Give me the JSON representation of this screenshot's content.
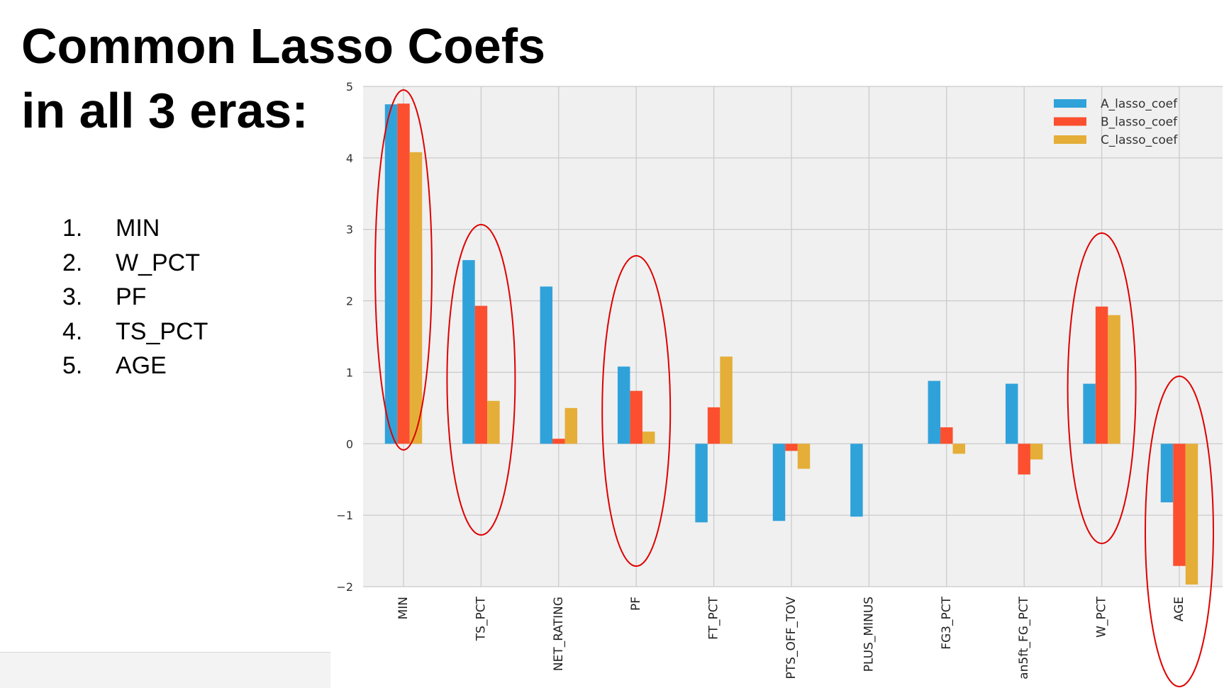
{
  "slide": {
    "title_line1": "Common Lasso Coefs",
    "title_line2": "in all 3 eras:",
    "list": [
      {
        "num": "1.",
        "label": "MIN"
      },
      {
        "num": "2.",
        "label": "W_PCT"
      },
      {
        "num": "3.",
        "label": "PF"
      },
      {
        "num": "4.",
        "label": "TS_PCT"
      },
      {
        "num": "5.",
        "label": "AGE"
      }
    ]
  },
  "chart_data": {
    "type": "bar",
    "categories": [
      "MIN",
      "TS_PCT",
      "NET_RATING",
      "PF",
      "FT_PCT",
      "PTS_OFF_TOV",
      "PLUS_MINUS",
      "FG3_PCT",
      "an5ft_FG_PCT",
      "W_PCT",
      "AGE"
    ],
    "series": [
      {
        "name": "A_lasso_coef",
        "color": "#30a2da",
        "values": [
          4.75,
          2.57,
          2.2,
          1.08,
          -1.1,
          -1.08,
          -1.02,
          0.88,
          0.84,
          0.84,
          -0.82
        ]
      },
      {
        "name": "B_lasso_coef",
        "color": "#fc4f30",
        "values": [
          4.76,
          1.93,
          0.07,
          0.74,
          0.51,
          -0.1,
          0.0,
          0.23,
          -0.43,
          1.92,
          -1.71
        ]
      },
      {
        "name": "C_lasso_coef",
        "color": "#e5ae38",
        "values": [
          4.08,
          0.6,
          0.5,
          0.17,
          1.22,
          -0.35,
          0.0,
          -0.14,
          -0.22,
          1.8,
          -1.97
        ]
      }
    ],
    "ylim": [
      -2,
      5
    ],
    "yticks": [
      -2,
      -1,
      0,
      1,
      2,
      3,
      4,
      5
    ],
    "ytick_labels": [
      "−2",
      "−1",
      "0",
      "1",
      "2",
      "3",
      "4",
      "5"
    ],
    "grid": true,
    "legend": "top-right",
    "highlighted_categories": [
      "MIN",
      "TS_PCT",
      "PF",
      "W_PCT",
      "AGE"
    ],
    "highlight_color": "#e00000",
    "background_color": "#f0f0f0",
    "grid_color": "#cbcbcb"
  }
}
